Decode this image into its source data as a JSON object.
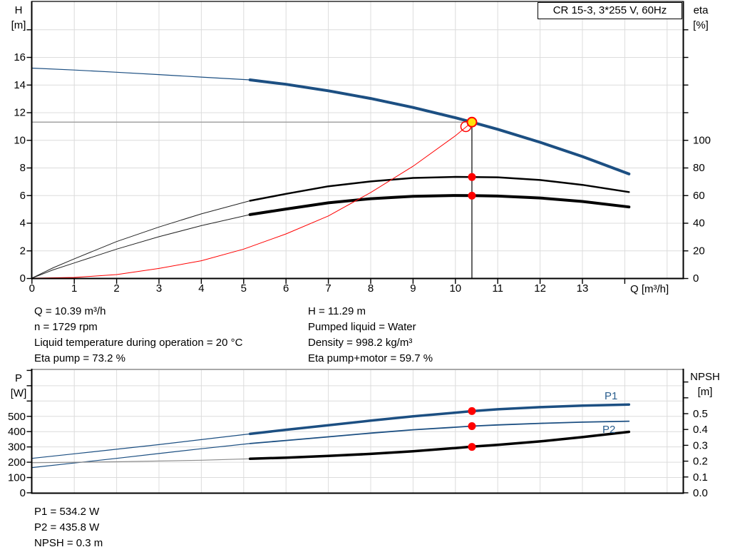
{
  "title_box": {
    "label": "CR 15-3, 3*255 V, 60Hz"
  },
  "colors": {
    "curve_blue": "#1c4f82",
    "curve_black": "#000000",
    "system_red": "#ff0000",
    "duty_yellow": "#ffe10a",
    "marker_gray": "#a3a3a3",
    "grid_gray": "#dcdcdc",
    "label_blue": "#2a5e8e"
  },
  "top_chart": {
    "left_axis_title_line1": "H",
    "left_axis_title_line2": "[m]",
    "right_axis_title_line1": "eta",
    "right_axis_title_line2": "[%]",
    "x_axis_title": "Q [m³/h]"
  },
  "bottom_chart": {
    "left_axis_title_line1": "P",
    "left_axis_title_line2": "[W]",
    "right_axis_title_line1": "NPSH",
    "right_axis_title_line2": "[m]",
    "p1_label": "P1",
    "p2_label": "P2"
  },
  "info_block": {
    "left_lines": [
      "Q = 10.39 m³/h",
      "n = 1729 rpm",
      "Liquid temperature during operation = 20 °C",
      "Eta pump = 73.2 %"
    ],
    "right_lines": [
      "H = 11.29 m",
      "Pumped liquid = Water",
      "Density = 998.2 kg/m³",
      "Eta pump+motor = 59.7 %"
    ]
  },
  "power_block": {
    "lines": [
      "P1 = 534.2 W",
      "P2 = 435.8 W",
      "NPSH = 0.3 m"
    ]
  },
  "chart_data": [
    {
      "id": "top",
      "type": "line",
      "title": "CR 15-3, 3*255 V, 60Hz",
      "xlabel": "Q [m³/h]",
      "x_range": [
        0,
        15.4
      ],
      "x_ticks_labeled": [
        0,
        1,
        2,
        3,
        4,
        5,
        6,
        7,
        8,
        9,
        10,
        11,
        12,
        13
      ],
      "x_ticks_unlabeled": [
        14
      ],
      "y_left": {
        "label": "H [m]",
        "range": [
          0,
          20
        ],
        "ticks": [
          0,
          2,
          4,
          6,
          8,
          10,
          12,
          14,
          16
        ]
      },
      "y_right": {
        "label": "eta [%]",
        "range": [
          0,
          200
        ],
        "ticks": [
          0,
          20,
          40,
          60,
          80,
          100
        ]
      },
      "grid": true,
      "duty_point": {
        "q": 10.39,
        "h": 11.29,
        "eta_pump": 73.2,
        "eta_pump_motor": 59.7
      },
      "series": [
        {
          "name": "pump-curve-preview",
          "axis": "H",
          "color": "#1c4f82",
          "width": 1.2,
          "points": [
            [
              0,
              15.2
            ],
            [
              1,
              15.06
            ],
            [
              2,
              14.9
            ],
            [
              3,
              14.73
            ],
            [
              4,
              14.55
            ],
            [
              5.15,
              14.35
            ]
          ]
        },
        {
          "name": "pump-curve",
          "axis": "H",
          "color": "#1c4f82",
          "width": 4,
          "points": [
            [
              5.15,
              14.35
            ],
            [
              6,
              14.03
            ],
            [
              7,
              13.56
            ],
            [
              8,
              13.0
            ],
            [
              9,
              12.35
            ],
            [
              10,
              11.61
            ],
            [
              10.39,
              11.29
            ],
            [
              11,
              10.77
            ],
            [
              12,
              9.83
            ],
            [
              13,
              8.8
            ],
            [
              14.1,
              7.54
            ]
          ]
        },
        {
          "name": "eta-pump-thin",
          "axis": "eta",
          "color": "#222222",
          "width": 1,
          "points": [
            [
              0,
              0
            ],
            [
              0.5,
              7.5
            ],
            [
              1,
              14
            ],
            [
              2,
              26.5
            ],
            [
              3,
              37
            ],
            [
              4,
              46.5
            ],
            [
              5.15,
              56
            ]
          ]
        },
        {
          "name": "eta-pump",
          "axis": "eta",
          "color": "#000000",
          "width": 2.5,
          "points": [
            [
              5.15,
              56
            ],
            [
              6,
              61
            ],
            [
              7,
              66.5
            ],
            [
              8,
              70
            ],
            [
              9,
              72.5
            ],
            [
              10,
              73.3
            ],
            [
              10.39,
              73.2
            ],
            [
              11,
              73
            ],
            [
              12,
              71
            ],
            [
              13,
              67.5
            ],
            [
              14.1,
              62.3
            ]
          ]
        },
        {
          "name": "eta-pump-motor-thin",
          "axis": "eta",
          "color": "#222222",
          "width": 1,
          "points": [
            [
              0,
              0
            ],
            [
              0.5,
              6
            ],
            [
              1,
              11
            ],
            [
              2,
              21
            ],
            [
              3,
              30
            ],
            [
              4,
              38
            ],
            [
              5.15,
              46
            ]
          ]
        },
        {
          "name": "eta-pump-motor",
          "axis": "eta",
          "color": "#000000",
          "width": 4,
          "points": [
            [
              5.15,
              46
            ],
            [
              6,
              50
            ],
            [
              7,
              54.5
            ],
            [
              8,
              57.5
            ],
            [
              9,
              59.2
            ],
            [
              10,
              59.8
            ],
            [
              10.39,
              59.7
            ],
            [
              11,
              59.4
            ],
            [
              12,
              58
            ],
            [
              13,
              55.5
            ],
            [
              14.1,
              51.5
            ]
          ]
        },
        {
          "name": "system-curve",
          "axis": "H",
          "color": "#ff0000",
          "width": 1,
          "points": [
            [
              0,
              0
            ],
            [
              1,
              0.05
            ],
            [
              2,
              0.26
            ],
            [
              3,
              0.7
            ],
            [
              4,
              1.26
            ],
            [
              5,
              2.1
            ],
            [
              6,
              3.2
            ],
            [
              7,
              4.5
            ],
            [
              8,
              6.2
            ],
            [
              9,
              8.1
            ],
            [
              10,
              10.3
            ],
            [
              10.39,
              11.29
            ]
          ]
        }
      ]
    },
    {
      "id": "bottom",
      "type": "line",
      "xlabel": "",
      "x_range": [
        0,
        15.4
      ],
      "y_left": {
        "label": "P [W]",
        "range": [
          0,
          800
        ],
        "ticks": [
          0,
          100,
          200,
          300,
          400,
          500
        ]
      },
      "y_right": {
        "label": "NPSH [m]",
        "range": [
          0,
          0.78
        ],
        "ticks": [
          "0.0",
          "0.1",
          "0.2",
          "0.3",
          "0.4",
          "0.5"
        ]
      },
      "grid": true,
      "duty_values": {
        "p1": 534.2,
        "p2": 435.8,
        "npsh_curve": 0.29,
        "npsh_display": 0.3
      },
      "series": [
        {
          "name": "p1-curve-preview",
          "axis": "P",
          "color": "#1c4f82",
          "width": 1.2,
          "points": [
            [
              0,
              225
            ],
            [
              1,
              255
            ],
            [
              2,
              285
            ],
            [
              3,
              315
            ],
            [
              4,
              348
            ],
            [
              5.15,
              385
            ]
          ]
        },
        {
          "name": "p1-curve",
          "axis": "P",
          "color": "#1c4f82",
          "width": 3.5,
          "points": [
            [
              5.15,
              385
            ],
            [
              6,
              412
            ],
            [
              7,
              442
            ],
            [
              8,
              472
            ],
            [
              9,
              500
            ],
            [
              10,
              524
            ],
            [
              10.39,
              534
            ],
            [
              11,
              546
            ],
            [
              12,
              560
            ],
            [
              13,
              570
            ],
            [
              14.1,
              577
            ]
          ]
        },
        {
          "name": "p2-curve-preview",
          "axis": "P",
          "color": "#1c4f82",
          "width": 1.2,
          "points": [
            [
              0,
              165
            ],
            [
              1,
              195
            ],
            [
              2,
              225
            ],
            [
              3,
              257
            ],
            [
              4,
              288
            ],
            [
              5.15,
              322
            ]
          ]
        },
        {
          "name": "p2-curve",
          "axis": "P",
          "color": "#1c4f82",
          "width": 1.8,
          "points": [
            [
              5.15,
              322
            ],
            [
              6,
              342
            ],
            [
              7,
              366
            ],
            [
              8,
              390
            ],
            [
              9,
              412
            ],
            [
              10,
              429
            ],
            [
              10.39,
              436
            ],
            [
              11,
              444
            ],
            [
              12,
              454
            ],
            [
              13,
              462
            ],
            [
              14.1,
              468
            ]
          ]
        },
        {
          "name": "npsh-curve-preview",
          "axis": "NPSH",
          "color": "#8c8c8c",
          "width": 1.2,
          "points": [
            [
              0,
              0.19
            ],
            [
              2,
              0.196
            ],
            [
              4,
              0.206
            ],
            [
              5.15,
              0.215
            ]
          ]
        },
        {
          "name": "npsh-curve",
          "axis": "NPSH",
          "color": "#000000",
          "width": 3.5,
          "points": [
            [
              5.15,
              0.215
            ],
            [
              6,
              0.222
            ],
            [
              7,
              0.233
            ],
            [
              8,
              0.246
            ],
            [
              9,
              0.262
            ],
            [
              10,
              0.283
            ],
            [
              10.39,
              0.292
            ],
            [
              11,
              0.303
            ],
            [
              12,
              0.325
            ],
            [
              13,
              0.352
            ],
            [
              14.1,
              0.385
            ]
          ]
        }
      ]
    }
  ]
}
